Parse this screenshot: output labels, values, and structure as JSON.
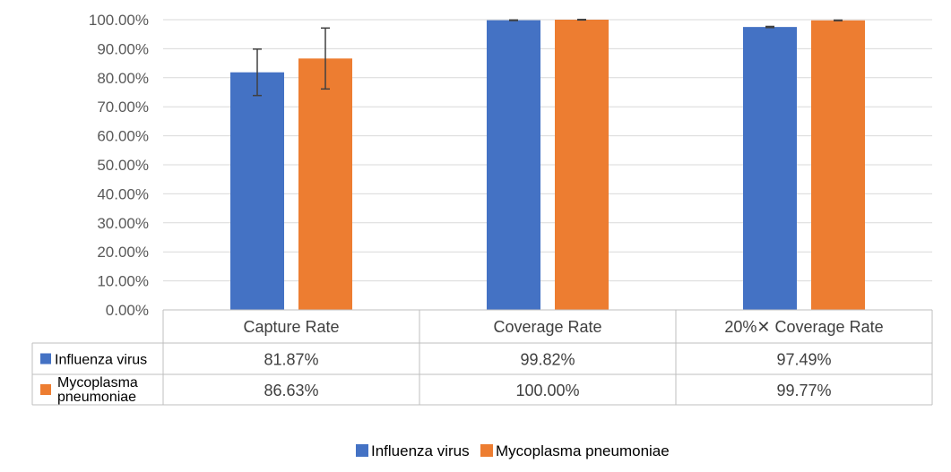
{
  "chart_data": {
    "type": "bar",
    "categories": [
      "Capture Rate",
      "Coverage Rate",
      "20%✕ Coverage Rate"
    ],
    "series": [
      {
        "name": "Influenza virus",
        "values": [
          81.87,
          99.82,
          97.49
        ],
        "labels": [
          "81.87%",
          "99.82%",
          "97.49%"
        ],
        "error": [
          8.0,
          0.1,
          0.2
        ],
        "color": "#4472C4"
      },
      {
        "name": "Mycoplasma pneumoniae",
        "values": [
          86.63,
          100.0,
          99.77
        ],
        "labels": [
          "86.63%",
          "100.00%",
          "99.77%"
        ],
        "error": [
          10.5,
          0.1,
          0.1
        ],
        "color": "#ED7D31"
      }
    ],
    "ylim": [
      0,
      100
    ],
    "yticks": [
      "0.00%",
      "10.00%",
      "20.00%",
      "30.00%",
      "40.00%",
      "50.00%",
      "60.00%",
      "70.00%",
      "80.00%",
      "90.00%",
      "100.00%"
    ],
    "grid": true,
    "data_table": true,
    "legend": "bottom"
  },
  "table_series_labels": [
    "Influenza virus",
    "Mycoplasma\npneumoniae"
  ]
}
